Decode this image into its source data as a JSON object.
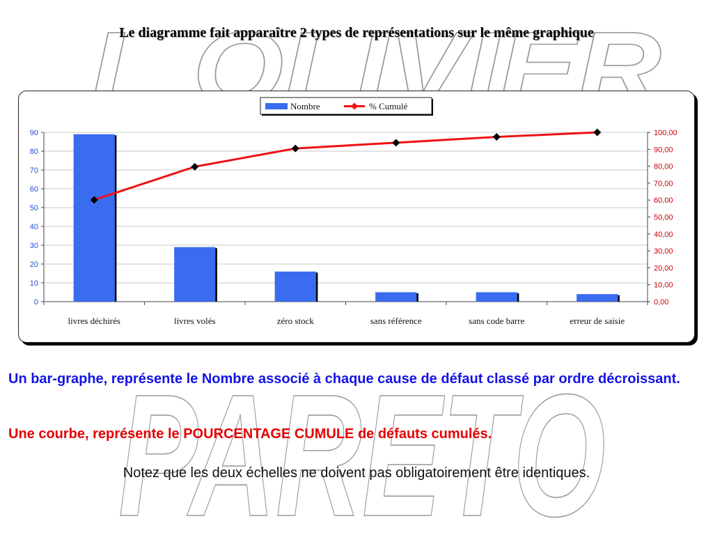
{
  "slide": {
    "title": "Le diagramme fait apparaître 2 types de représentations sur le même graphique",
    "watermark_top": "L OLIVIER",
    "watermark_bottom": "PARETO",
    "paragraph_blue": "Un bar-graphe,  représente le Nombre associé à chaque cause de défaut classé par ordre décroissant.",
    "paragraph_red": "Une courbe, représente le POURCENTAGE CUMULE de défauts cumulés.",
    "note": "Notez que les deux échelles ne doivent pas obligatoirement être identiques."
  },
  "colors": {
    "bar": "#3a6cf0",
    "line": "#ee1111",
    "marker": "#000000",
    "left_axis_text": "#1f4fd6",
    "right_axis_text": "#cc0000"
  },
  "chart_data": {
    "type": "bar+line",
    "categories": [
      "livres déchirés",
      "livres volés",
      "zéro stock",
      "sans référence",
      "sans code barre",
      "erreur de saisie"
    ],
    "series": [
      {
        "name": "Nombre",
        "type": "bar",
        "axis": "left",
        "values": [
          89,
          29,
          16,
          5,
          5,
          4
        ]
      },
      {
        "name": "% Cumulé",
        "type": "line",
        "axis": "right",
        "values": [
          60.1,
          79.7,
          90.5,
          93.9,
          97.3,
          100.0
        ]
      }
    ],
    "y_left": {
      "min": 0,
      "max": 90,
      "step": 10,
      "ticks": [
        "0",
        "10",
        "20",
        "30",
        "40",
        "50",
        "60",
        "70",
        "80",
        "90"
      ]
    },
    "y_right": {
      "min": 0,
      "max": 100,
      "step": 10,
      "ticks": [
        "0,00",
        "10,00",
        "20,00",
        "30,00",
        "40,00",
        "50,00",
        "60,00",
        "70,00",
        "80,00",
        "90,00",
        "100,00"
      ]
    },
    "legend": {
      "position": "top-center",
      "entries": [
        "Nombre",
        "% Cumulé"
      ]
    },
    "grid": true
  }
}
